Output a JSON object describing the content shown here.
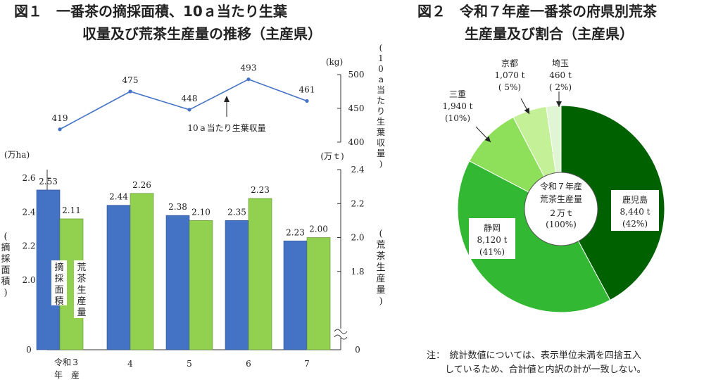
{
  "figure1": {
    "title_line1": "図１　一番茶の摘採面積、10ａ当たり生葉",
    "title_line2": "収量及び荒茶生産量の推移（主産県）"
  },
  "figure2": {
    "title_line1": "図２　令和７年産一番茶の府県別荒茶",
    "title_line2": "生産量及び割合（主産県）",
    "note_line1": "注：　統計数値については、表示単位未満を四捨五入",
    "note_line2": "　　しているため、合計値と内訳の計が一致しない。"
  },
  "chart_data": [
    {
      "type": "line",
      "title": "",
      "x": [
        "令和3年産",
        "4",
        "5",
        "6",
        "7"
      ],
      "series": [
        {
          "name": "10ａ当たり生葉収量",
          "values": [
            419,
            475,
            448,
            493,
            461
          ],
          "color": "#4472c4"
        }
      ],
      "y_unit": "(kg)",
      "ylabel": "(10ａ当たり生葉収量)",
      "ylim": [
        400,
        500
      ],
      "yticks": [
        "400",
        "450",
        "500"
      ],
      "data_labels": [
        "419",
        "475",
        "448",
        "493",
        "461"
      ],
      "annotation": "10ａ当たり生葉収量"
    },
    {
      "type": "bar",
      "categories": [
        "令和3年産",
        "4",
        "5",
        "6",
        "7"
      ],
      "category_labels": {
        "first_line1": "令和３",
        "first_line2": "年　産",
        "rest": [
          "4",
          "5",
          "6",
          "7"
        ]
      },
      "series": [
        {
          "name": "摘採面積",
          "values": [
            2.53,
            2.44,
            2.38,
            2.35,
            2.23
          ],
          "labels": [
            "2.53",
            "2.44",
            "2.38",
            "2.35",
            "2.23"
          ],
          "color": "#4472c4",
          "axis": "left"
        },
        {
          "name": "荒茶生産量",
          "values": [
            2.11,
            2.26,
            2.1,
            2.23,
            2.0
          ],
          "labels": [
            "2.11",
            "2.26",
            "2.10",
            "2.23",
            "2.00"
          ],
          "color": "#92d050",
          "axis": "right"
        }
      ],
      "left_axis": {
        "unit": "(万ha)",
        "label": "(摘採面積)",
        "ylim": [
          1.85,
          2.65
        ],
        "ticks": [
          2.0,
          2.2,
          2.4,
          2.6
        ],
        "tick_labels": [
          "2.0",
          "2.2",
          "2.4",
          "2.6"
        ],
        "zero_label": "0",
        "broken": true
      },
      "right_axis": {
        "unit": "(万ｔ)",
        "label": "(荒茶生産量)",
        "ylim": [
          1.6,
          2.4
        ],
        "ticks": [
          1.8,
          2.0,
          2.2,
          2.4
        ],
        "tick_labels": [
          "1.8",
          "2.0",
          "2.2",
          "2.4"
        ],
        "zero_label": "0",
        "broken": true
      }
    },
    {
      "type": "pie",
      "title": "",
      "center_label": [
        "令和７年産",
        "荒茶生産量",
        "２万ｔ",
        "(100%)"
      ],
      "slices": [
        {
          "name": "鹿児島",
          "value": 8440,
          "percent": 42,
          "label": [
            "鹿児島",
            "8,440 t",
            "(42%)"
          ],
          "color": "#006100"
        },
        {
          "name": "静岡",
          "value": 8120,
          "percent": 41,
          "label": [
            "静岡",
            "8,120 t",
            "(41%)"
          ],
          "color": "#33b833"
        },
        {
          "name": "三重",
          "value": 1940,
          "percent": 10,
          "label": [
            "三重",
            "1,940 t",
            "(10%)"
          ],
          "color": "#8ee05a"
        },
        {
          "name": "京都",
          "value": 1070,
          "percent": 5,
          "label": [
            "京都",
            "1,070 t",
            "( 5%)"
          ],
          "color": "#c4f098"
        },
        {
          "name": "埼玉",
          "value": 460,
          "percent": 2,
          "label": [
            "埼玉",
            "460 t",
            "( 2%)"
          ],
          "color": "#dff5d4"
        }
      ]
    }
  ]
}
